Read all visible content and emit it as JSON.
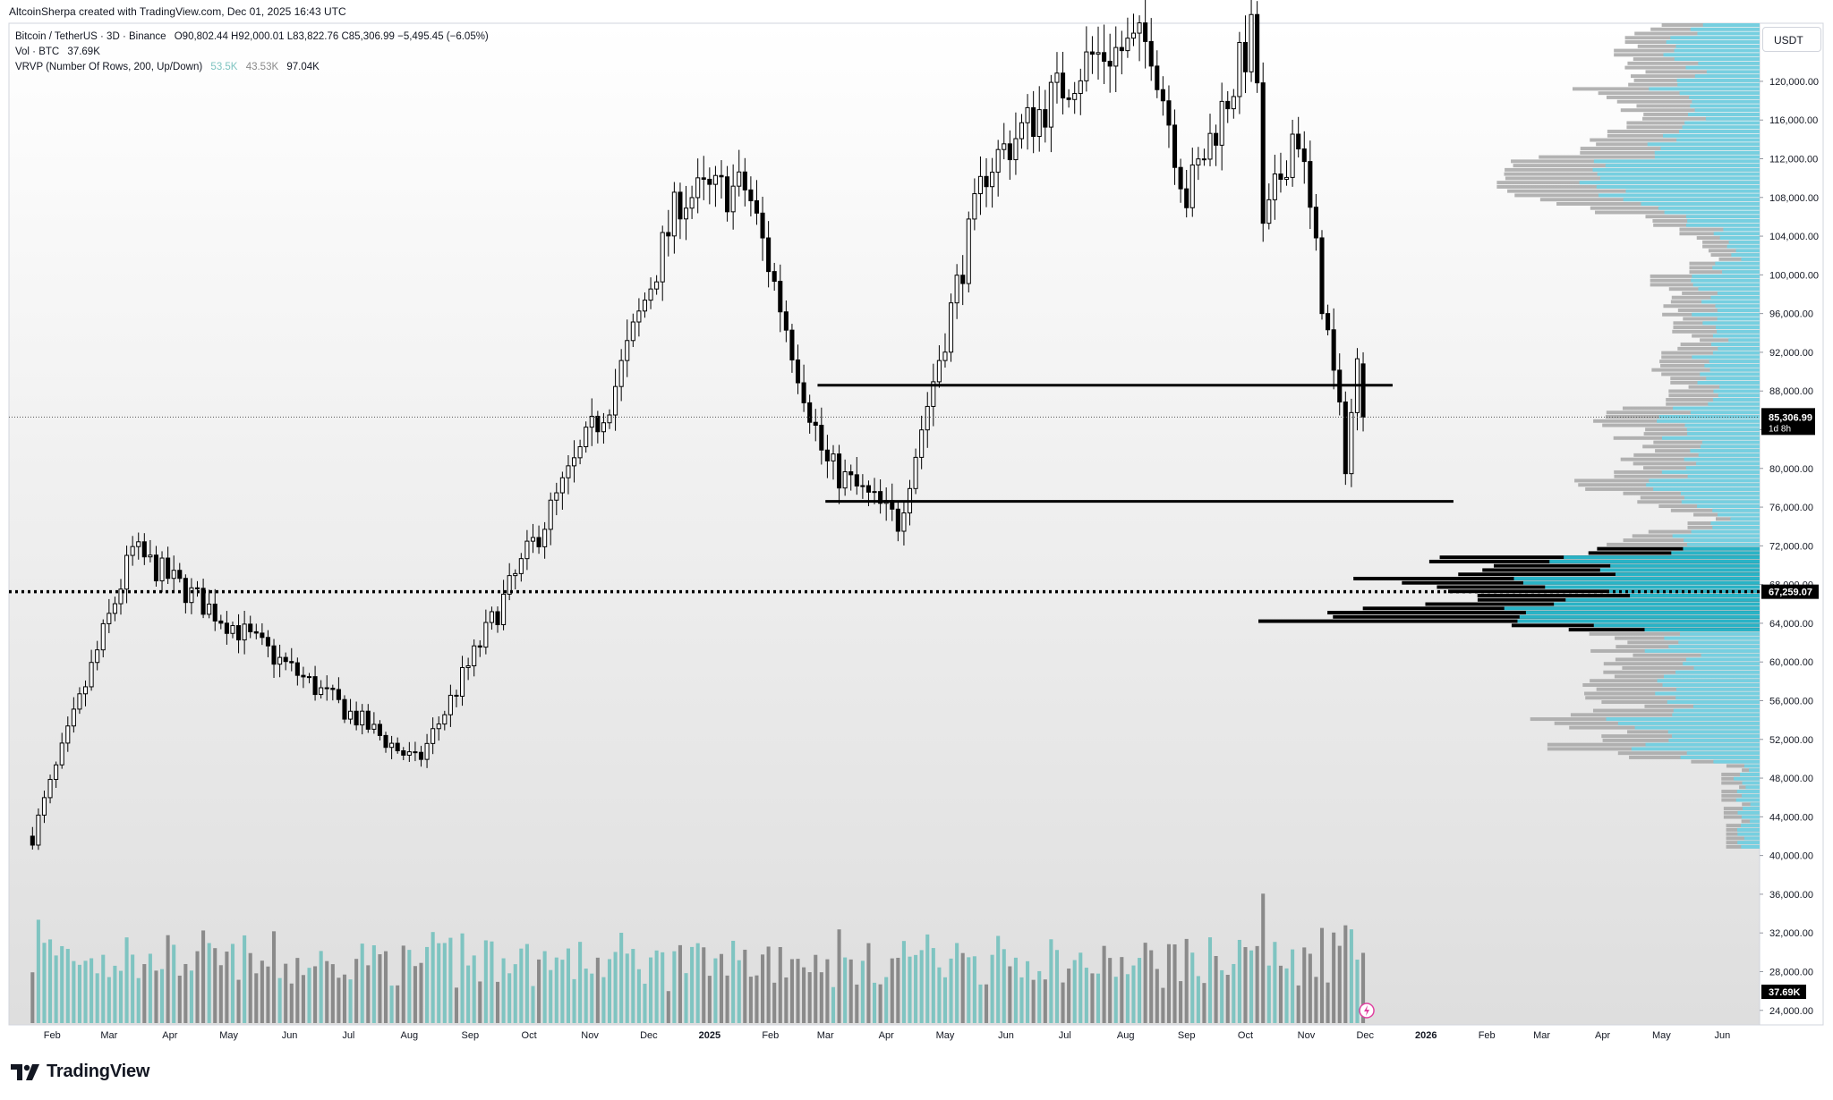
{
  "header": {
    "created_line": "AltcoinSherpa created with TradingView.com, Dec 01, 2025 16:43 UTC"
  },
  "legend": {
    "symbol": "Bitcoin / TetherUS · 3D · Binance",
    "ohlc": "O90,802.44  H92,000.01  L83,822.76  C85,306.99  −5,495.45 (−6.05%)",
    "vol_label": "Vol · BTC",
    "vol_value": "37.69K",
    "vrvp_label": "VRVP (Number Of Rows, 200, Up/Down)",
    "vrvp_up": "53.5K",
    "vrvp_down": "43.53K",
    "vrvp_total": "97.04K"
  },
  "currency_button": "USDT",
  "brand": {
    "name": "TradingView"
  },
  "chart_data": {
    "type": "candlestick",
    "symbol": "BTCUSDT",
    "timeframe": "3D",
    "exchange": "Binance",
    "y_axis": {
      "ticks": [
        "24,000.00",
        "28,000.00",
        "32,000.00",
        "36,000.00",
        "40,000.00",
        "44,000.00",
        "48,000.00",
        "52,000.00",
        "56,000.00",
        "60,000.00",
        "64,000.00",
        "68,000.00",
        "72,000.00",
        "76,000.00",
        "80,000.00",
        "84,000.00",
        "88,000.00",
        "92,000.00",
        "96,000.00",
        "100,000.00",
        "104,000.00",
        "108,000.00",
        "112,000.00",
        "116,000.00",
        "120,000.00"
      ],
      "range": [
        22500,
        126000
      ]
    },
    "x_axis": {
      "labels": [
        "Feb",
        "Mar",
        "Apr",
        "May",
        "Jun",
        "Jul",
        "Aug",
        "Sep",
        "Oct",
        "Nov",
        "Dec",
        "2025",
        "Feb",
        "Mar",
        "Apr",
        "May",
        "Jun",
        "Jul",
        "Aug",
        "Sep",
        "Oct",
        "Nov",
        "Dec",
        "2026",
        "Feb",
        "Mar",
        "Apr",
        "May",
        "Jun"
      ]
    },
    "price_labels": {
      "last_price": "85,306.99",
      "countdown": "1d 8h",
      "level_price": "67,259.07",
      "last_volume": "37.69K"
    },
    "levels": [
      {
        "name": "resistance",
        "price": 88600,
        "style": "solid"
      },
      {
        "name": "support",
        "price": 76600,
        "style": "solid"
      },
      {
        "name": "poc",
        "price": 67259.07,
        "style": "dotted"
      }
    ],
    "key_points": [
      {
        "x": "2024-01-22",
        "price": 42000
      },
      {
        "x": "2024-03-13",
        "price": 71500
      },
      {
        "x": "2024-08-05",
        "price": 49500
      },
      {
        "x": "2024-11-13",
        "price": 88000
      },
      {
        "x": "2024-12-17",
        "price": 108000
      },
      {
        "x": "2025-01-20",
        "price": 109000
      },
      {
        "x": "2025-03-01",
        "price": 80500
      },
      {
        "x": "2025-04-07",
        "price": 74500
      },
      {
        "x": "2025-05-22",
        "price": 111000
      },
      {
        "x": "2025-07-14",
        "price": 122500
      },
      {
        "x": "2025-08-14",
        "price": 124000
      },
      {
        "x": "2025-09-01",
        "price": 108000
      },
      {
        "x": "2025-10-06",
        "price": 125500
      },
      {
        "x": "2025-10-10",
        "price": 104000
      },
      {
        "x": "2025-10-27",
        "price": 116000
      },
      {
        "x": "2025-11-21",
        "price": 81000
      },
      {
        "x": "2025-11-28",
        "price": 92000
      },
      {
        "x": "2025-12-01",
        "price": 85307
      }
    ],
    "colors": {
      "up_candle": "#ffffff",
      "down_candle": "#000000",
      "wick": "#000000",
      "volume_up": "#7fc4c1",
      "volume_down": "#8a8a8a",
      "profile_up": "#76cfe0",
      "profile_down": "#a6a6a6",
      "value_area_down": "#000000",
      "value_area_up": "#29b3c6"
    }
  }
}
